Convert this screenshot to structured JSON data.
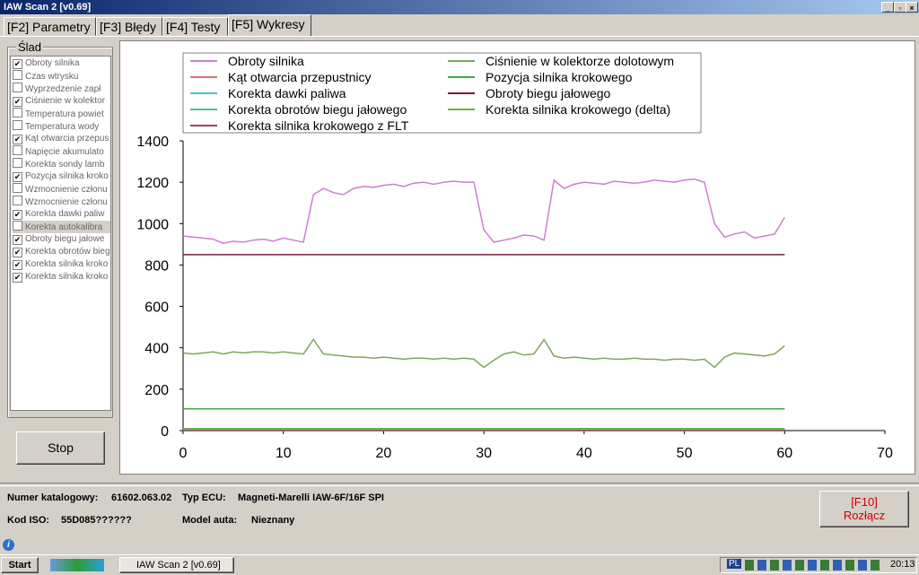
{
  "window": {
    "title": "IAW Scan 2 [v0.69]"
  },
  "tabs": [
    "[F2] Parametry",
    "[F3] Błędy",
    "[F4] Testy",
    "[F5] Wykresy"
  ],
  "active_tab": 3,
  "trace_panel": {
    "title": "Ślad",
    "items": [
      {
        "label": "Obroty silnika",
        "checked": true
      },
      {
        "label": "Czas wtrysku",
        "checked": false
      },
      {
        "label": "Wyprzedzenie zapł",
        "checked": false
      },
      {
        "label": "Ciśnienie w kolektor",
        "checked": true
      },
      {
        "label": "Temperatura powiet",
        "checked": false
      },
      {
        "label": "Temperatura wody",
        "checked": false
      },
      {
        "label": "Kąt otwarcia przepus",
        "checked": true
      },
      {
        "label": "Napięcie akumulato",
        "checked": false
      },
      {
        "label": "Korekta sondy lamb",
        "checked": false
      },
      {
        "label": "Pozycja silnika kroko",
        "checked": true
      },
      {
        "label": "Wzmocnienie członu",
        "checked": false
      },
      {
        "label": "Wzmocnienie członu",
        "checked": false
      },
      {
        "label": "Korekta dawki paliw",
        "checked": true
      },
      {
        "label": "Korekta autokalibra",
        "checked": false,
        "selected": true
      },
      {
        "label": "Obroty biegu jałowe",
        "checked": true
      },
      {
        "label": "Korekta obrotów bieg",
        "checked": true
      },
      {
        "label": "Korekta silnika kroko",
        "checked": true
      },
      {
        "label": "Korekta silnika kroko",
        "checked": true
      }
    ]
  },
  "stop_button": "Stop",
  "chart_data": {
    "type": "line",
    "x": [
      0,
      1,
      2,
      3,
      4,
      5,
      6,
      7,
      8,
      9,
      10,
      11,
      12,
      13,
      14,
      15,
      16,
      17,
      18,
      19,
      20,
      21,
      22,
      23,
      24,
      25,
      26,
      27,
      28,
      29,
      30,
      31,
      32,
      33,
      34,
      35,
      36,
      37,
      38,
      39,
      40,
      41,
      42,
      43,
      44,
      45,
      46,
      47,
      48,
      49,
      50,
      51,
      52,
      53,
      54,
      55,
      56,
      57,
      58,
      59,
      60
    ],
    "xlim": [
      0,
      70
    ],
    "xticks": [
      0,
      10,
      20,
      30,
      40,
      50,
      60,
      70
    ],
    "ylim": [
      0,
      1400
    ],
    "yticks": [
      0,
      200,
      400,
      600,
      800,
      1000,
      1200,
      1400
    ],
    "grid": false,
    "series": [
      {
        "name": "Obroty silnika",
        "color": "#cc7fd0",
        "values": [
          940,
          935,
          930,
          925,
          905,
          915,
          910,
          920,
          925,
          915,
          930,
          920,
          910,
          1140,
          1170,
          1150,
          1140,
          1170,
          1180,
          1175,
          1185,
          1190,
          1180,
          1195,
          1200,
          1190,
          1200,
          1205,
          1200,
          1200,
          970,
          910,
          920,
          930,
          945,
          940,
          920,
          1210,
          1170,
          1190,
          1200,
          1195,
          1190,
          1205,
          1200,
          1195,
          1200,
          1210,
          1205,
          1200,
          1210,
          1215,
          1200,
          1000,
          935,
          950,
          960,
          930,
          940,
          950,
          1030
        ]
      },
      {
        "name": "Kąt otwarcia przepustnicy",
        "color": "#e07070",
        "values": [
          5,
          5,
          5,
          5,
          5,
          5,
          5,
          5,
          5,
          5,
          5,
          5,
          5,
          5,
          5,
          5,
          5,
          5,
          5,
          5,
          5,
          5,
          5,
          5,
          5,
          5,
          5,
          5,
          5,
          5,
          5,
          5,
          5,
          5,
          5,
          5,
          5,
          5,
          5,
          5,
          5,
          5,
          5,
          5,
          5,
          5,
          5,
          5,
          5,
          5,
          5,
          5,
          5,
          5,
          5,
          5,
          5,
          5,
          5,
          5,
          5
        ]
      },
      {
        "name": "Korekta dawki paliwa",
        "color": "#40c8c8",
        "values": [
          2,
          2,
          2,
          2,
          2,
          2,
          2,
          2,
          2,
          2,
          2,
          2,
          2,
          2,
          2,
          2,
          2,
          2,
          2,
          2,
          2,
          2,
          2,
          2,
          2,
          2,
          2,
          2,
          2,
          2,
          2,
          2,
          2,
          2,
          2,
          2,
          2,
          2,
          2,
          2,
          2,
          2,
          2,
          2,
          2,
          2,
          2,
          2,
          2,
          2,
          2,
          2,
          2,
          2,
          2,
          2,
          2,
          2,
          2,
          2,
          2
        ]
      },
      {
        "name": "Korekta obrotów biegu jałowego",
        "color": "#40c0a0",
        "values": [
          0,
          0,
          0,
          0,
          0,
          0,
          0,
          0,
          0,
          0,
          0,
          0,
          0,
          0,
          0,
          0,
          0,
          0,
          0,
          0,
          0,
          0,
          0,
          0,
          0,
          0,
          0,
          0,
          0,
          0,
          0,
          0,
          0,
          0,
          0,
          0,
          0,
          0,
          0,
          0,
          0,
          0,
          0,
          0,
          0,
          0,
          0,
          0,
          0,
          0,
          0,
          0,
          0,
          0,
          0,
          0,
          0,
          0,
          0,
          0,
          0
        ]
      },
      {
        "name": "Korekta silnika krokowego z FLT",
        "color": "#a04068",
        "values": [
          0,
          0,
          0,
          0,
          0,
          0,
          0,
          0,
          0,
          0,
          0,
          0,
          0,
          0,
          0,
          0,
          0,
          0,
          0,
          0,
          0,
          0,
          0,
          0,
          0,
          0,
          0,
          0,
          0,
          0,
          0,
          0,
          0,
          0,
          0,
          0,
          0,
          0,
          0,
          0,
          0,
          0,
          0,
          0,
          0,
          0,
          0,
          0,
          0,
          0,
          0,
          0,
          0,
          0,
          0,
          0,
          0,
          0,
          0,
          0,
          0
        ]
      },
      {
        "name": "Ciśnienie w kolektorze dolotowym",
        "color": "#7fa55a",
        "values": [
          375,
          370,
          375,
          380,
          370,
          380,
          375,
          380,
          380,
          375,
          380,
          375,
          370,
          440,
          370,
          365,
          360,
          355,
          355,
          350,
          355,
          350,
          345,
          350,
          350,
          345,
          350,
          345,
          350,
          345,
          305,
          340,
          370,
          380,
          365,
          370,
          440,
          360,
          350,
          355,
          350,
          345,
          350,
          345,
          345,
          350,
          345,
          345,
          340,
          345,
          345,
          340,
          345,
          305,
          355,
          375,
          370,
          365,
          360,
          370,
          410
        ]
      },
      {
        "name": "Pozycja silnika krokowego",
        "color": "#3faa3f",
        "values": [
          105,
          105,
          105,
          105,
          105,
          105,
          105,
          105,
          105,
          105,
          105,
          105,
          105,
          105,
          105,
          105,
          105,
          105,
          105,
          105,
          105,
          105,
          105,
          105,
          105,
          105,
          105,
          105,
          105,
          105,
          105,
          105,
          105,
          105,
          105,
          105,
          105,
          105,
          105,
          105,
          105,
          105,
          105,
          105,
          105,
          105,
          105,
          105,
          105,
          105,
          105,
          105,
          105,
          105,
          105,
          105,
          105,
          105,
          105,
          105,
          105
        ]
      },
      {
        "name": "Obroty biegu jałowego",
        "color": "#7a1c3c",
        "values": [
          850,
          850,
          850,
          850,
          850,
          850,
          850,
          850,
          850,
          850,
          850,
          850,
          850,
          850,
          850,
          850,
          850,
          850,
          850,
          850,
          850,
          850,
          850,
          850,
          850,
          850,
          850,
          850,
          850,
          850,
          850,
          850,
          850,
          850,
          850,
          850,
          850,
          850,
          850,
          850,
          850,
          850,
          850,
          850,
          850,
          850,
          850,
          850,
          850,
          850,
          850,
          850,
          850,
          850,
          850,
          850,
          850,
          850,
          850,
          850,
          850
        ]
      },
      {
        "name": "Korekta silnika krokowego (delta)",
        "color": "#6cb03c",
        "values": [
          10,
          10,
          10,
          10,
          10,
          10,
          10,
          10,
          10,
          10,
          10,
          10,
          10,
          10,
          10,
          10,
          10,
          10,
          10,
          10,
          10,
          10,
          10,
          10,
          10,
          10,
          10,
          10,
          10,
          10,
          10,
          10,
          10,
          10,
          10,
          10,
          10,
          10,
          10,
          10,
          10,
          10,
          10,
          10,
          10,
          10,
          10,
          10,
          10,
          10,
          10,
          10,
          10,
          10,
          10,
          10,
          10,
          10,
          10,
          10,
          10
        ]
      }
    ]
  },
  "info": {
    "catalog_label": "Numer katalogowy:",
    "catalog": "61602.063.02",
    "ecu_label": "Typ ECU:",
    "ecu": "Magneti-Marelli IAW-6F/16F SPI",
    "iso_label": "Kod ISO:",
    "iso": "55D085??????",
    "model_label": "Model auta:",
    "model": "Nieznany"
  },
  "disconnect_button": {
    "key": "[F10]",
    "label": "Rozłącz"
  },
  "taskbar": {
    "start": "Start",
    "task": "IAW Scan 2 [v0.69]",
    "lang": "PL",
    "clock": "20:13"
  }
}
